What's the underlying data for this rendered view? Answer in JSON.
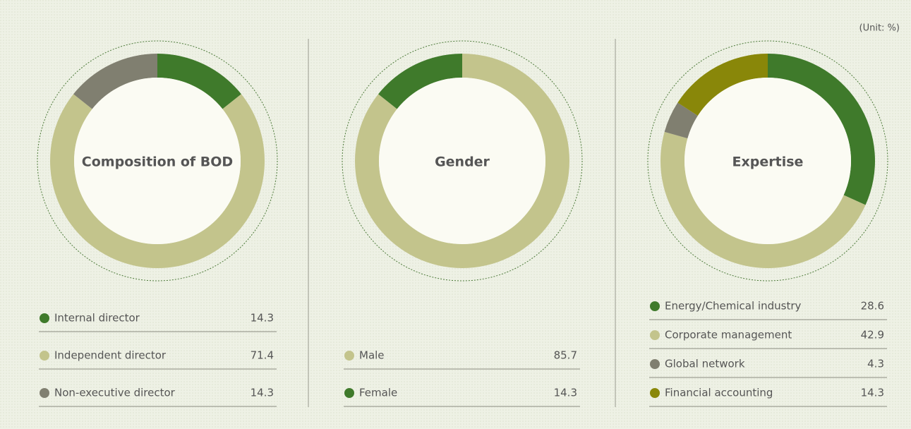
{
  "note": "(Unit: %)",
  "chart_data": [
    {
      "type": "pie",
      "title": "Composition of BOD",
      "categories": [
        "Internal director",
        "Independent director",
        "Non-executive director"
      ],
      "values": [
        14.3,
        71.4,
        14.3
      ],
      "colors": [
        "#3f7a2b",
        "#c3c48c",
        "#807f70"
      ]
    },
    {
      "type": "pie",
      "title": "Gender",
      "categories": [
        "Male",
        "Female"
      ],
      "values": [
        85.7,
        14.3
      ],
      "colors": [
        "#c3c48c",
        "#3f7a2b"
      ]
    },
    {
      "type": "pie",
      "title": "Expertise",
      "categories": [
        "Energy/Chemical industry",
        "Corporate management",
        "Global network",
        "Financial accounting"
      ],
      "values": [
        28.6,
        42.9,
        4.3,
        14.3
      ],
      "colors": [
        "#3f7a2b",
        "#c3c48c",
        "#807f70",
        "#898709"
      ]
    }
  ]
}
